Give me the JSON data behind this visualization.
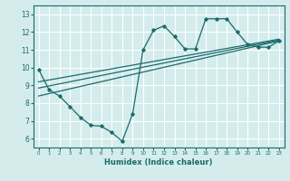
{
  "background_color": "#d4ecec",
  "grid_color": "#ffffff",
  "line_color": "#1a6b6b",
  "xlabel": "Humidex (Indice chaleur)",
  "xlim": [
    -0.5,
    23.5
  ],
  "ylim": [
    5.5,
    13.5
  ],
  "yticks": [
    6,
    7,
    8,
    9,
    10,
    11,
    12,
    13
  ],
  "xticks": [
    0,
    1,
    2,
    3,
    4,
    5,
    6,
    7,
    8,
    9,
    10,
    11,
    12,
    13,
    14,
    15,
    16,
    17,
    18,
    19,
    20,
    21,
    22,
    23
  ],
  "series1_x": [
    0,
    1,
    2,
    3,
    4,
    5,
    6,
    7,
    8,
    9,
    10,
    11,
    12,
    13,
    14,
    15,
    16,
    17,
    18,
    19,
    20,
    21,
    22,
    23
  ],
  "series1_y": [
    9.9,
    8.75,
    8.4,
    7.8,
    7.2,
    6.75,
    6.7,
    6.35,
    5.85,
    7.4,
    11.0,
    12.1,
    12.35,
    11.75,
    11.05,
    11.05,
    12.75,
    12.75,
    12.75,
    12.0,
    11.3,
    11.15,
    11.15,
    11.5
  ],
  "line1_x": [
    0,
    23
  ],
  "line1_y": [
    8.4,
    11.5
  ],
  "line2_x": [
    0,
    23
  ],
  "line2_y": [
    8.85,
    11.55
  ],
  "line3_x": [
    0,
    23
  ],
  "line3_y": [
    9.2,
    11.6
  ]
}
